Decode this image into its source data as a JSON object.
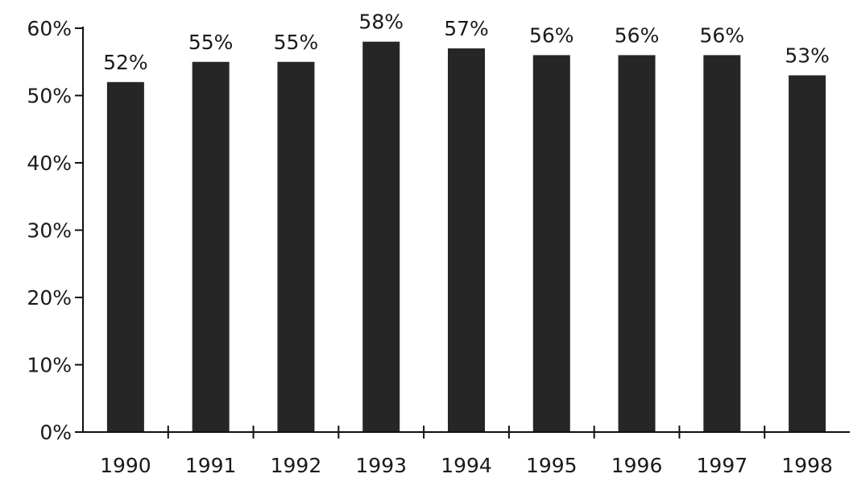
{
  "chart_data": {
    "type": "bar",
    "title": "",
    "xlabel": "",
    "ylabel": "",
    "categories": [
      "1990",
      "1991",
      "1992",
      "1993",
      "1994",
      "1995",
      "1996",
      "1997",
      "1998"
    ],
    "values": [
      52,
      55,
      55,
      58,
      57,
      56,
      56,
      56,
      53
    ],
    "data_labels": [
      "52%",
      "55%",
      "55%",
      "58%",
      "57%",
      "56%",
      "56%",
      "56%",
      "53%"
    ],
    "ylim": [
      0,
      60
    ],
    "y_ticks": [
      0,
      10,
      20,
      30,
      40,
      50,
      60
    ],
    "y_tick_labels": [
      "0%",
      "10%",
      "20%",
      "30%",
      "40%",
      "50%",
      "60%"
    ],
    "grid": false,
    "legend": "none",
    "bar_color": "#262626"
  }
}
